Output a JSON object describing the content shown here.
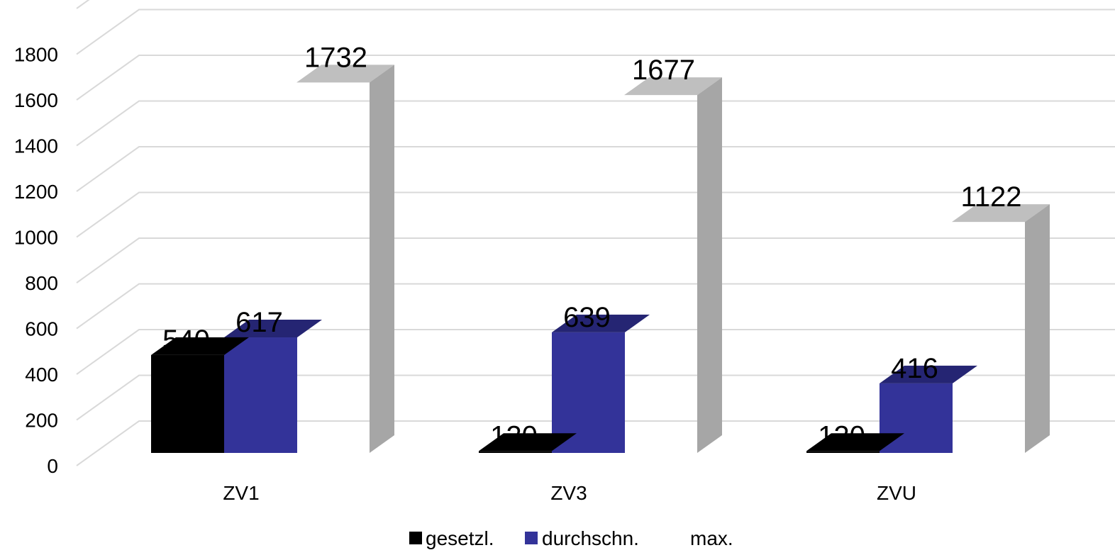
{
  "chart_data": {
    "type": "bar",
    "style": "3d-clustered-column",
    "categories": [
      "ZV1",
      "ZV3",
      "ZVU"
    ],
    "series": [
      {
        "name": "gesetzl.",
        "values": [
          540,
          120,
          120
        ],
        "color": "#000000",
        "top_color": "#000000",
        "side_color": "#000000"
      },
      {
        "name": "durchschn.",
        "values": [
          617,
          639,
          416
        ],
        "color": "#333399",
        "top_color": "#252573",
        "side_color": "#252573"
      },
      {
        "name": "max.",
        "values": [
          1732,
          1677,
          1122
        ],
        "color": "#ffffff",
        "top_color": "#bfbfbf",
        "side_color": "#a6a6a6"
      }
    ],
    "data_labels": [
      [
        "540",
        "120",
        "120"
      ],
      [
        "617",
        "639",
        "416"
      ],
      [
        "1732",
        "1677",
        "1122"
      ]
    ],
    "y_ticks": [
      "0",
      "200",
      "400",
      "600",
      "800",
      "1000",
      "1200",
      "1400",
      "1600",
      "1800"
    ],
    "ylim": [
      0,
      1800
    ],
    "grid": true,
    "legend_position": "bottom",
    "title": "",
    "xlabel": "",
    "ylabel": ""
  }
}
